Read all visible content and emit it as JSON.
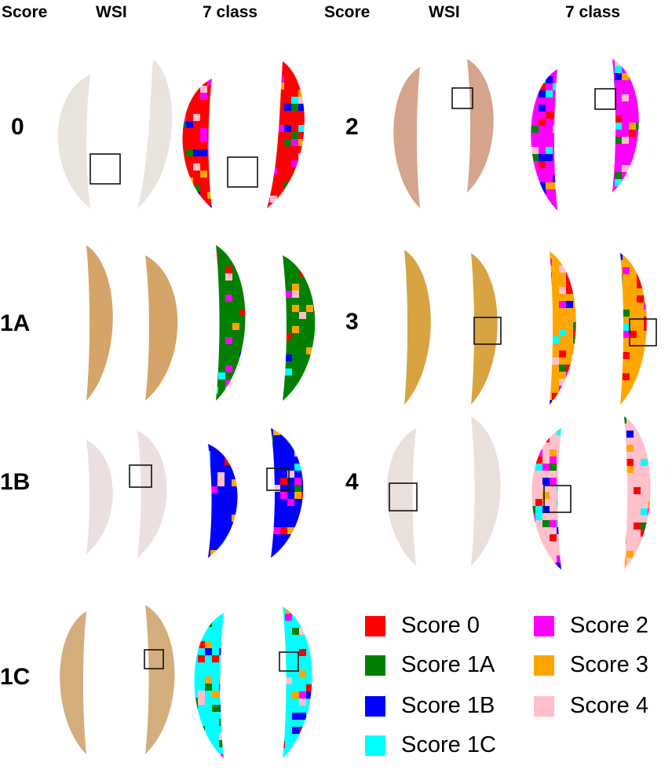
{
  "headers": {
    "left": {
      "score": "Score",
      "wsi": "WSI",
      "class7": "7 class"
    },
    "right": {
      "score": "Score",
      "wsi": "WSI",
      "class7": "7 class"
    }
  },
  "rows": [
    {
      "label": "0",
      "stain": "#e9e4dd",
      "dominant": "score0"
    },
    {
      "label": "1A",
      "stain": "#d4a468",
      "dominant": "score1a"
    },
    {
      "label": "1B",
      "stain": "#ece0e1",
      "dominant": "score1b"
    },
    {
      "label": "1C",
      "stain": "#d3ae7c",
      "dominant": "score1c"
    },
    {
      "label": "2",
      "stain": "#d5a48c",
      "dominant": "score2"
    },
    {
      "label": "3",
      "stain": "#d8a441",
      "dominant": "score3"
    },
    {
      "label": "4",
      "stain": "#eae0dc",
      "dominant": "score4"
    }
  ],
  "legend": [
    {
      "key": "score0",
      "label": "Score 0",
      "color": "#ff0000"
    },
    {
      "key": "score1a",
      "label": "Score 1A",
      "color": "#008000"
    },
    {
      "key": "score1b",
      "label": "Score 1B",
      "color": "#0000ff"
    },
    {
      "key": "score1c",
      "label": "Score 1C",
      "color": "#00ffff"
    },
    {
      "key": "score2",
      "label": "Score 2",
      "color": "#ff00ff"
    },
    {
      "key": "score3",
      "label": "Score 3",
      "color": "#ffa500"
    },
    {
      "key": "score4",
      "label": "Score 4",
      "color": "#ffc0cb"
    }
  ]
}
